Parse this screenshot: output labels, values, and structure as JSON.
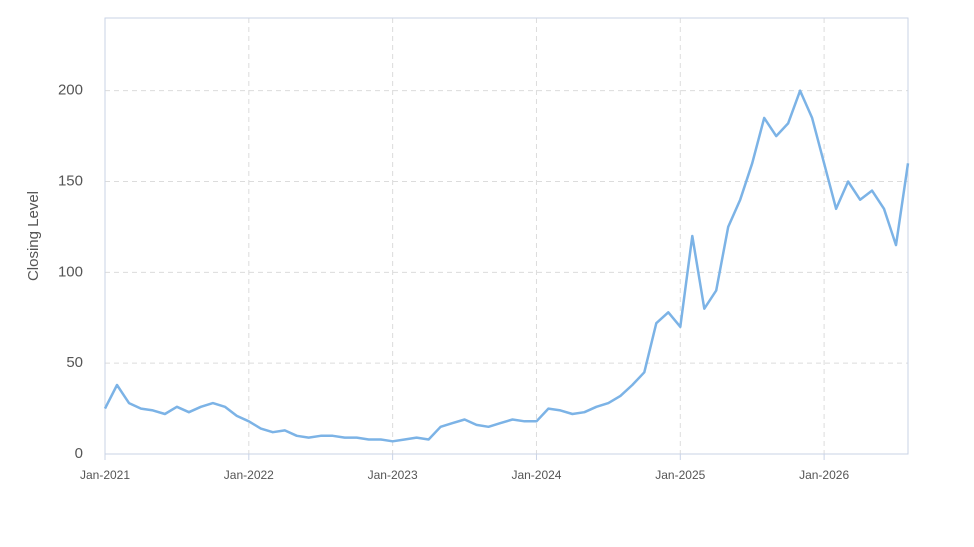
{
  "chart_data": {
    "type": "line",
    "y_label": "Closing Level",
    "x": [
      "2021-01",
      "2021-02",
      "2021-03",
      "2021-04",
      "2021-05",
      "2021-06",
      "2021-07",
      "2021-08",
      "2021-09",
      "2021-10",
      "2021-11",
      "2021-12",
      "2022-01",
      "2022-02",
      "2022-03",
      "2022-04",
      "2022-05",
      "2022-06",
      "2022-07",
      "2022-08",
      "2022-09",
      "2022-10",
      "2022-11",
      "2022-12",
      "2023-01",
      "2023-02",
      "2023-03",
      "2023-04",
      "2023-05",
      "2023-06",
      "2023-07",
      "2023-08",
      "2023-09",
      "2023-10",
      "2023-11",
      "2023-12",
      "2024-01",
      "2024-02",
      "2024-03",
      "2024-04",
      "2024-05",
      "2024-06",
      "2024-07",
      "2024-08",
      "2024-09",
      "2024-10",
      "2024-11",
      "2024-12",
      "2025-01",
      "2025-02",
      "2025-03",
      "2025-04",
      "2025-05",
      "2025-06",
      "2025-07",
      "2025-08",
      "2025-09",
      "2025-10",
      "2025-11",
      "2025-12",
      "2026-01",
      "2026-02",
      "2026-03",
      "2026-04",
      "2026-05",
      "2026-06",
      "2026-07",
      "2026-08"
    ],
    "series": [
      {
        "color": "#7cb3e6",
        "values": [
          25,
          38,
          28,
          25,
          24,
          22,
          26,
          23,
          26,
          28,
          26,
          21,
          18,
          14,
          12,
          13,
          10,
          9,
          10,
          10,
          9,
          9,
          8,
          8,
          7,
          8,
          9,
          8,
          15,
          17,
          19,
          16,
          15,
          17,
          19,
          18,
          18,
          25,
          24,
          22,
          23,
          26,
          28,
          32,
          38,
          45,
          72,
          78,
          70,
          120,
          80,
          90,
          125,
          140,
          160,
          185,
          175,
          182,
          200,
          185,
          160,
          135,
          150,
          140,
          145,
          135,
          115,
          160
        ]
      }
    ],
    "xlim": [
      "2021-01",
      "2026-08"
    ],
    "xticks": [
      {
        "value": "2021-01",
        "label": "Jan-2021"
      },
      {
        "value": "2022-01",
        "label": "Jan-2022"
      },
      {
        "value": "2023-01",
        "label": "Jan-2023"
      },
      {
        "value": "2024-01",
        "label": "Jan-2024"
      },
      {
        "value": "2025-01",
        "label": "Jan-2025"
      },
      {
        "value": "2026-01",
        "label": "Jan-2026"
      }
    ],
    "ylim": [
      0,
      240
    ],
    "yticks": [
      0,
      50,
      100,
      150,
      200
    ],
    "grid": true
  }
}
